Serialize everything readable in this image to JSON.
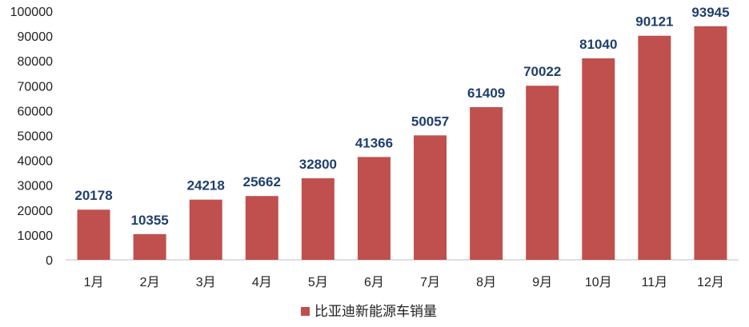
{
  "chart_data": {
    "type": "bar",
    "categories": [
      "1月",
      "2月",
      "3月",
      "4月",
      "5月",
      "6月",
      "7月",
      "8月",
      "9月",
      "10月",
      "11月",
      "12月"
    ],
    "series": [
      {
        "name": "比亚迪新能源车销量",
        "values": [
          20178,
          10355,
          24218,
          25662,
          32800,
          41366,
          50057,
          61409,
          70022,
          81040,
          90121,
          93945
        ],
        "color": "#c0504d"
      }
    ],
    "data_labels": [
      "20178",
      "10355",
      "24218",
      "25662",
      "32800",
      "41366",
      "50057",
      "61409",
      "70022",
      "81040",
      "90121",
      "93945"
    ],
    "ylim": [
      0,
      100000
    ],
    "yticks": [
      "0",
      "10000",
      "20000",
      "30000",
      "40000",
      "50000",
      "60000",
      "70000",
      "80000",
      "90000",
      "100000"
    ],
    "ytick_values": [
      0,
      10000,
      20000,
      30000,
      40000,
      50000,
      60000,
      70000,
      80000,
      90000,
      100000
    ],
    "grid": false,
    "legend_position": "bottom",
    "label_color": "#1f3f6e"
  }
}
